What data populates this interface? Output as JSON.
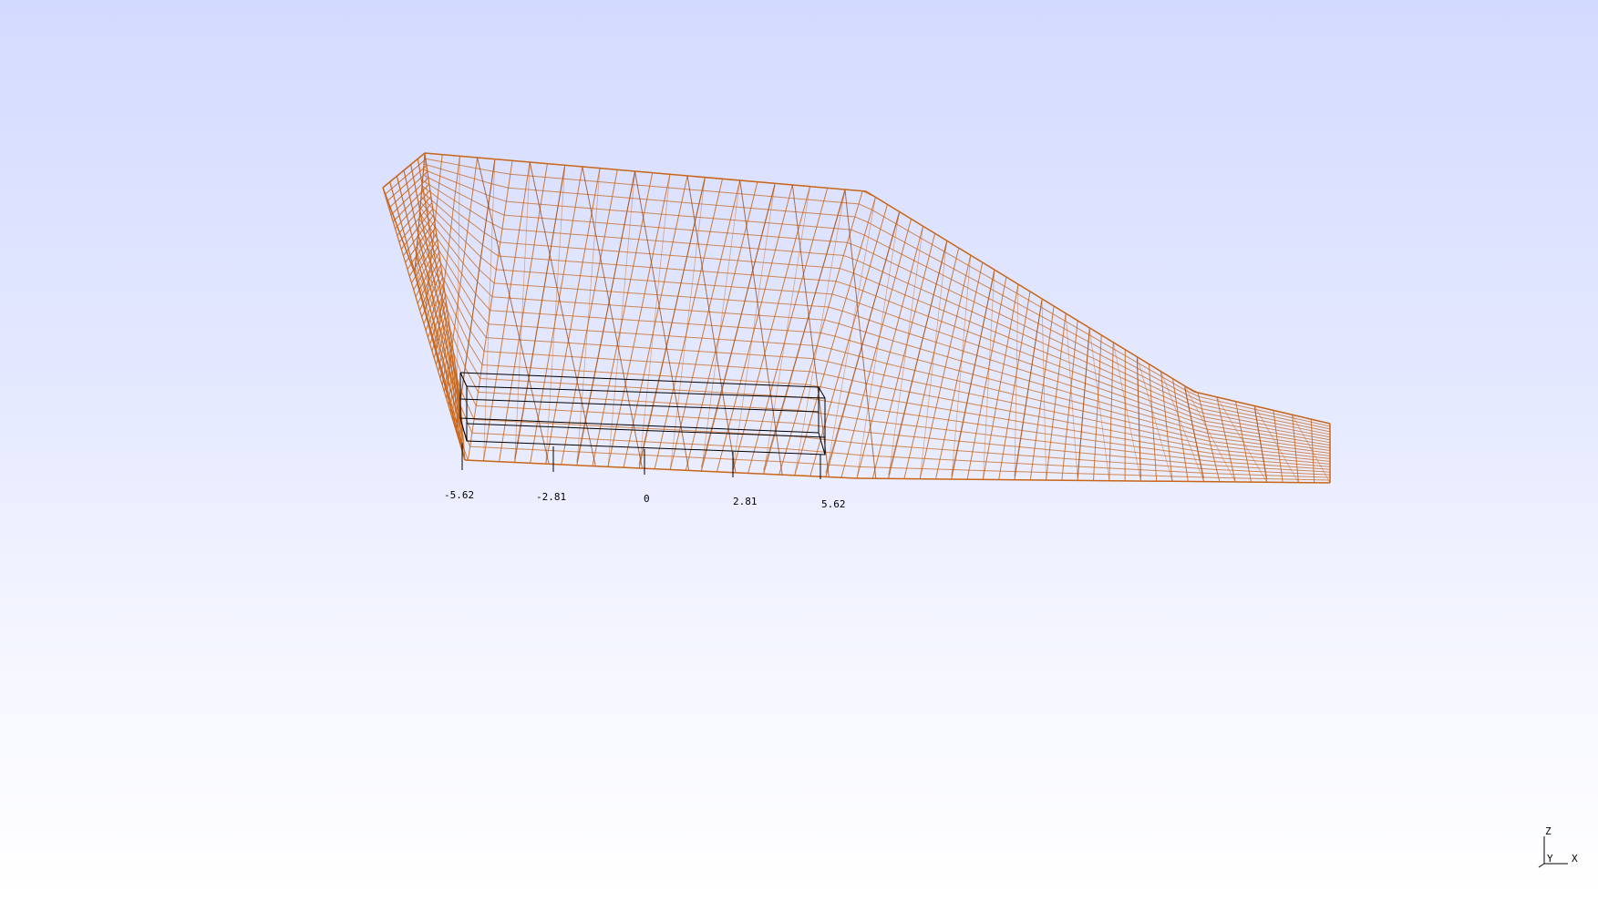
{
  "viewer": {
    "background_top": "#d3daff",
    "background_bottom": "#ffffff"
  },
  "mesh": {
    "color": "#c8661a",
    "dark_color": "#8a3a06",
    "render_style": "wireframe"
  },
  "bounding_box": {
    "color": "#000000",
    "tick_labels": [
      "-5.62",
      "-2.81",
      "0",
      "2.81",
      "5.62"
    ]
  },
  "axes_triad": {
    "z_label": "Z",
    "x_label": "X",
    "y_label": "Y"
  }
}
